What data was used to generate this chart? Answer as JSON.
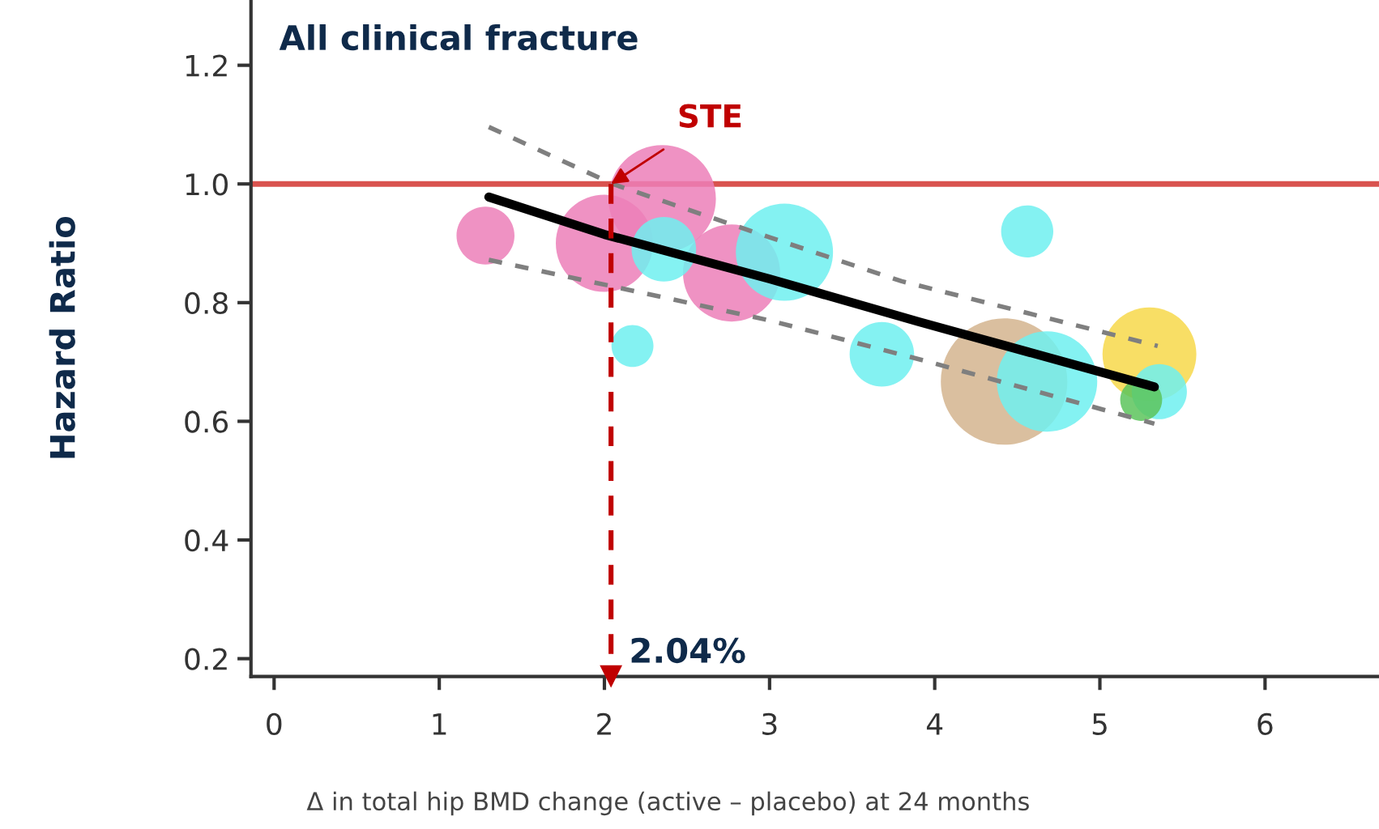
{
  "chart_data": {
    "type": "bubble",
    "title": "All clinical fracture",
    "xlabel": "Δ in total hip BMD change (active – placebo) at 24 months",
    "ylabel": "Hazard Ratio",
    "xlim": [
      -0.14,
      6.69
    ],
    "xticks": [
      0,
      1,
      2,
      3,
      4,
      5,
      6
    ],
    "ylim": [
      0.17,
      1.31
    ],
    "yticks": [
      {
        "value": 0.2,
        "label": "0.2"
      },
      {
        "value": 0.4,
        "label": "0.4"
      },
      {
        "value": 0.6,
        "label": "0.6"
      },
      {
        "value": 0.8,
        "label": "0.8"
      },
      {
        "value": 1.0,
        "label": "1.0"
      },
      {
        "value": 1.2,
        "label": "1.2"
      }
    ],
    "grid": false,
    "series": [
      {
        "color": "#ec7fb8",
        "x": [
          1.28,
          2.0,
          2.35,
          2.77
        ],
        "values": [
          0.913,
          0.9,
          0.975,
          0.85
        ],
        "sizes": [
          0.21,
          0.59,
          0.72,
          0.59
        ]
      },
      {
        "color": "#d4b48e",
        "x": [
          4.42
        ],
        "values": [
          0.667
        ],
        "sizes": [
          1
        ]
      },
      {
        "color": "#f7d84a",
        "x": [
          5.3
        ],
        "values": [
          0.713
        ],
        "sizes": [
          0.55
        ]
      },
      {
        "color": "#6ef0f0",
        "x": [
          2.36,
          3.09,
          2.17,
          3.68,
          4.56,
          4.68,
          5.36
        ],
        "values": [
          0.89,
          0.885,
          0.727,
          0.713,
          0.92,
          0.667,
          0.65
        ],
        "sizes": [
          0.26,
          0.59,
          0.11,
          0.26,
          0.17,
          0.63,
          0.19
        ]
      },
      {
        "color": "#5cc45c",
        "x": [
          5.25
        ],
        "values": [
          0.636
        ],
        "sizes": [
          0.11
        ]
      },
      {
        "type": "line",
        "color": "#000000",
        "line_style": "solid",
        "x": [
          1.3,
          2.0,
          3.0,
          3.9,
          5.33
        ],
        "values": [
          0.978,
          0.915,
          0.84,
          0.768,
          0.658
        ]
      },
      {
        "type": "line",
        "color": "#7f7f7f",
        "line_style": "dashed",
        "x": [
          1.3,
          2.05,
          3.0,
          3.8,
          5.35
        ],
        "values": [
          1.096,
          1.0,
          0.91,
          0.836,
          0.727
        ]
      },
      {
        "type": "line",
        "color": "#7f7f7f",
        "line_style": "dashed",
        "x": [
          1.3,
          2.04,
          3.0,
          3.9,
          5.33
        ],
        "values": [
          0.872,
          0.828,
          0.77,
          0.705,
          0.596
        ]
      }
    ],
    "ref_lines": [
      {
        "axis": "y",
        "value": 1.0,
        "color": "#d9534f",
        "line_style": "solid"
      },
      {
        "axis": "x",
        "value": 2.04,
        "label": "2.04%",
        "color": "#c00000",
        "line_style": "dashed"
      }
    ],
    "annotations": [
      {
        "text": "STE",
        "x": 2.04,
        "y": 1.0
      }
    ]
  }
}
